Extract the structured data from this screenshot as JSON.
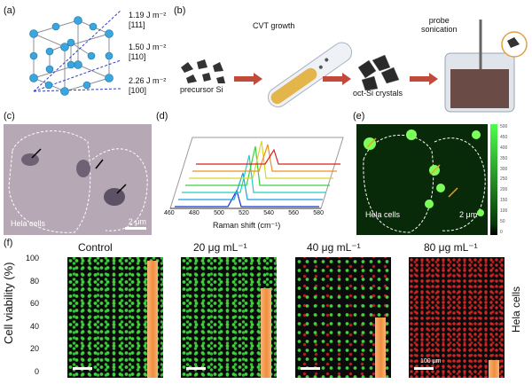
{
  "panel_labels": {
    "a": "(a)",
    "b": "(b)",
    "c": "(c)",
    "d": "(d)",
    "e": "(e)",
    "f": "(f)"
  },
  "panel_a": {
    "energies": [
      {
        "value": "1.19 J m⁻²",
        "plane": "[111]"
      },
      {
        "value": "1.50 J m⁻²",
        "plane": "[110]"
      },
      {
        "value": "2.26 J m⁻²",
        "plane": "[100]"
      }
    ]
  },
  "panel_b": {
    "cvt_growth": "CVT growth",
    "precursor": "precursor Si",
    "probe": "probe",
    "sonication": "sonication",
    "oct_crystals": "oct-Si crystals"
  },
  "panel_c": {
    "cell_label": "Hela cells",
    "scale": "2 μm"
  },
  "panel_d": {
    "xlabel": "Raman shift (cm⁻¹)",
    "ticks": [
      "460",
      "480",
      "500",
      "520",
      "540",
      "560",
      "580"
    ]
  },
  "panel_e": {
    "cell_label": "Hela cells",
    "scale": "2 μm",
    "colorbar_ticks": [
      "500",
      "450",
      "400",
      "350",
      "300",
      "250",
      "200",
      "150",
      "100",
      "50",
      "0"
    ]
  },
  "panel_f": {
    "ylabel": "Cell viability (%)",
    "yticks": [
      "100",
      "80",
      "60",
      "40",
      "20",
      "0"
    ],
    "side_label": "Hela cells",
    "scale": "100 μm",
    "groups": [
      {
        "label": "Control",
        "viability": 97
      },
      {
        "label": "20 μg mL⁻¹",
        "viability": 74
      },
      {
        "label": "40 μg mL⁻¹",
        "viability": 50
      },
      {
        "label": "80 μg mL⁻¹",
        "viability": 15
      }
    ]
  },
  "chart_data": {
    "type": "bar",
    "categories": [
      "Control",
      "20 μg mL⁻¹",
      "40 μg mL⁻¹",
      "80 μg mL⁻¹"
    ],
    "values": [
      97,
      74,
      50,
      15
    ],
    "ylabel": "Cell viability (%)",
    "ylim": [
      0,
      100
    ]
  }
}
